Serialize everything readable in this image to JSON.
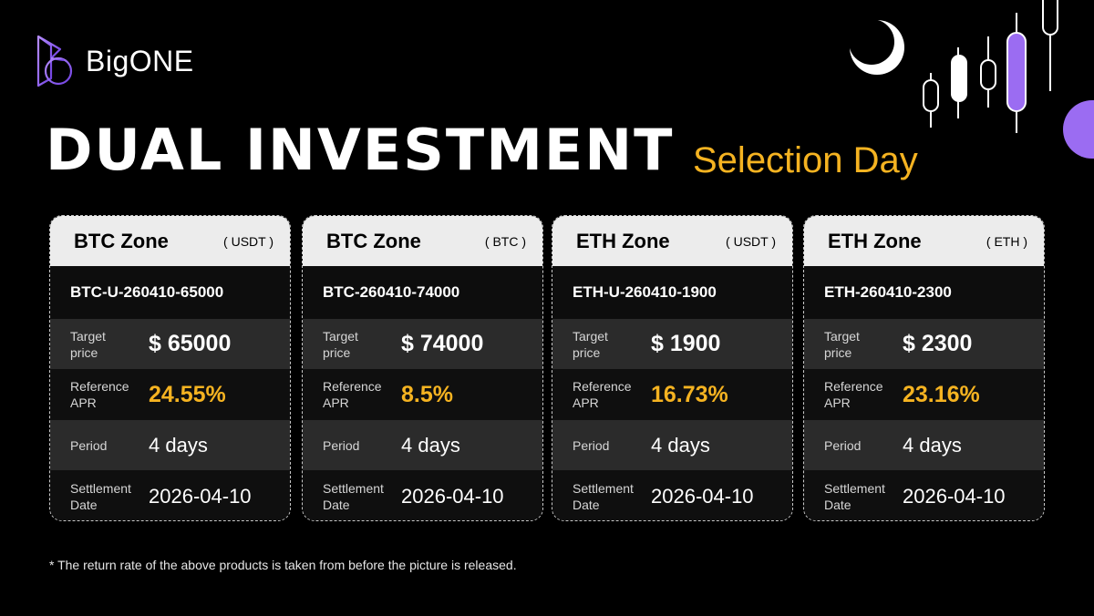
{
  "brand": {
    "name": "BigONE",
    "logo_icon": "bigone-logo-icon"
  },
  "header": {
    "title": "DUAL INVESTMENT",
    "subtitle": "Selection Day"
  },
  "colors": {
    "accent_gold": "#f5b321",
    "accent_purple": "#9b6cf2",
    "card_header_bg": "#ececec",
    "row_dark": "#0f0f0f",
    "row_gray": "#2b2b2b"
  },
  "row_labels": {
    "target": "Target\nprice",
    "apr": "Reference\nAPR",
    "period": "Period",
    "settlement": "Settlement\nDate"
  },
  "cards": [
    {
      "zone": "BTC Zone",
      "unit": "( USDT )",
      "code": "BTC-U-260410-65000",
      "target_price": "$ 65000",
      "apr": "24.55%",
      "period": "4 days",
      "settlement_date": "2026-04-10"
    },
    {
      "zone": "BTC Zone",
      "unit": "( BTC )",
      "code": "BTC-260410-74000",
      "target_price": "$ 74000",
      "apr": "8.5%",
      "period": "4 days",
      "settlement_date": "2026-04-10"
    },
    {
      "zone": "ETH Zone",
      "unit": "( USDT )",
      "code": "ETH-U-260410-1900",
      "target_price": "$ 1900",
      "apr": "16.73%",
      "period": "4 days",
      "settlement_date": "2026-04-10"
    },
    {
      "zone": "ETH Zone",
      "unit": "( ETH )",
      "code": "ETH-260410-2300",
      "target_price": "$ 2300",
      "apr": "23.16%",
      "period": "4 days",
      "settlement_date": "2026-04-10"
    }
  ],
  "footnote": "*  The return rate of the above products is taken from before the picture is released."
}
